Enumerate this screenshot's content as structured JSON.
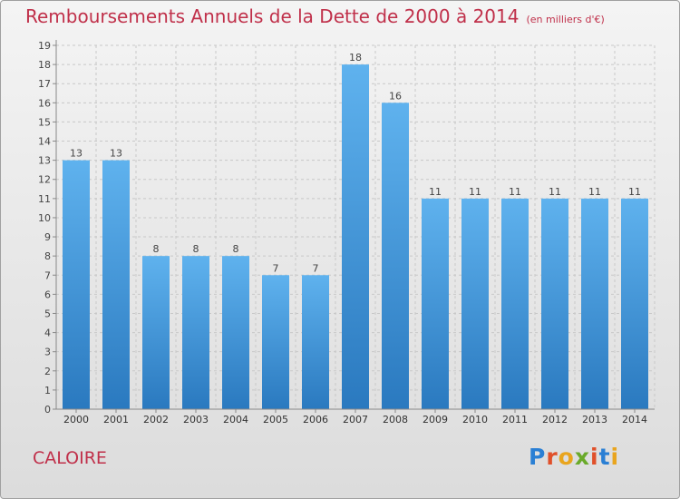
{
  "header": {
    "title": "Remboursements Annuels de la Dette de 2000 à 2014",
    "unit": "(en milliers d'€)"
  },
  "footer": {
    "commune": "CALOIRE",
    "logo_text": "Proxiti",
    "logo_letters": [
      "P",
      "r",
      "o",
      "x",
      "i",
      "t",
      "i"
    ],
    "logo_colors": [
      "#2a7fd4",
      "#e0502a",
      "#e9a51e",
      "#6aaa2a",
      "#e0502a",
      "#2a7fd4",
      "#e9a51e"
    ]
  },
  "chart_data": {
    "type": "bar",
    "title": "Remboursements Annuels de la Dette de 2000 à 2014",
    "xlabel": "",
    "ylabel": "",
    "categories": [
      "2000",
      "2001",
      "2002",
      "2003",
      "2004",
      "2005",
      "2006",
      "2007",
      "2008",
      "2009",
      "2010",
      "2011",
      "2012",
      "2013",
      "2014"
    ],
    "values": [
      13,
      13,
      8,
      8,
      8,
      7,
      7,
      18,
      16,
      11,
      11,
      11,
      11,
      11,
      11
    ],
    "ylim": [
      0,
      19
    ],
    "yticks": [
      "0",
      "1",
      "2",
      "3",
      "4",
      "5",
      "6",
      "7",
      "8",
      "9",
      "10",
      "11",
      "12",
      "13",
      "14",
      "15",
      "16",
      "17",
      "18",
      "19"
    ],
    "grid": true,
    "legend": "none",
    "bar_color": "#3d96dc"
  }
}
